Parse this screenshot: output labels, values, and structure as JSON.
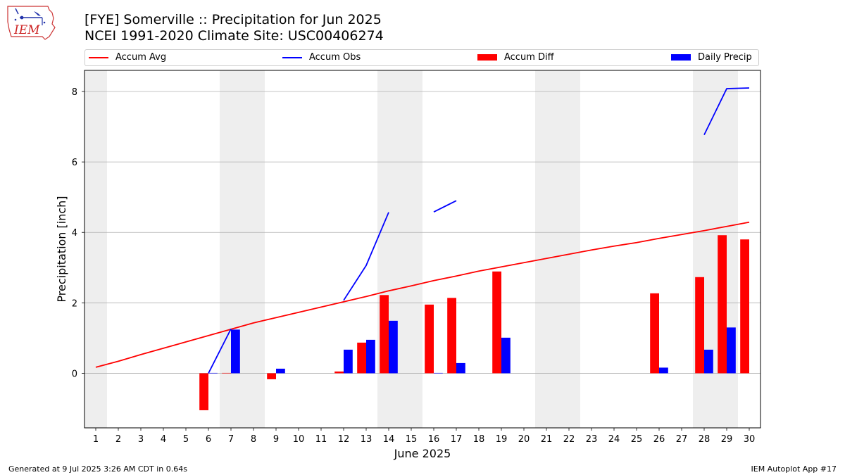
{
  "logo": {
    "text": "IEM"
  },
  "title_line1": "[FYE] Somerville :: Precipitation for Jun 2025",
  "title_line2": "NCEI 1991-2020 Climate Site: USC00406274",
  "footer": {
    "left": "Generated at 9 Jul 2025 3:26 AM CDT in 0.64s",
    "right": "IEM Autoplot App #17"
  },
  "colors": {
    "avg": "#ff0000",
    "obs": "#0000ff",
    "diff": "#ff0000",
    "daily": "#0000ff",
    "weekend": "#eeeeee",
    "grid": "#b0b0b0"
  },
  "chart_data": {
    "type": "bar",
    "xlabel": "June 2025",
    "ylabel": "Precipitation [inch]",
    "xlim": [
      0.5,
      30.5
    ],
    "ylim": [
      -1.55,
      8.6
    ],
    "yticks": [
      0,
      2,
      4,
      6,
      8
    ],
    "grid": "horizontal",
    "legend_placement": "top",
    "days": [
      1,
      2,
      3,
      4,
      5,
      6,
      7,
      8,
      9,
      10,
      11,
      12,
      13,
      14,
      15,
      16,
      17,
      18,
      19,
      20,
      21,
      22,
      23,
      24,
      25,
      26,
      27,
      28,
      29,
      30
    ],
    "weekend_days": [
      1,
      7,
      8,
      14,
      15,
      21,
      22,
      28,
      29
    ],
    "legend": [
      "Accum Avg",
      "Accum Obs",
      "Accum Diff",
      "Daily Precip"
    ],
    "series": [
      {
        "name": "Accum Avg",
        "kind": "line",
        "color": "#ff0000",
        "values": [
          0.17,
          0.34,
          0.53,
          0.71,
          0.89,
          1.07,
          1.25,
          1.43,
          1.58,
          1.73,
          1.88,
          2.03,
          2.18,
          2.34,
          2.48,
          2.63,
          2.76,
          2.9,
          3.02,
          3.14,
          3.26,
          3.38,
          3.5,
          3.61,
          3.71,
          3.83,
          3.94,
          4.05,
          4.17,
          4.29
        ]
      },
      {
        "name": "Accum Obs",
        "kind": "line",
        "color": "#0000ff",
        "values": [
          null,
          null,
          null,
          null,
          null,
          0.0,
          1.26,
          null,
          null,
          null,
          null,
          2.07,
          3.06,
          4.57,
          null,
          4.58,
          4.9,
          null,
          null,
          null,
          null,
          null,
          null,
          null,
          null,
          null,
          null,
          6.77,
          8.08,
          8.1
        ]
      },
      {
        "name": "Accum Diff",
        "kind": "bar",
        "color": "#ff0000",
        "offset": -0.2,
        "values": [
          0,
          0,
          0,
          0,
          0,
          -1.05,
          0.01,
          0,
          -0.17,
          0,
          0,
          0.05,
          0.87,
          2.22,
          0,
          1.95,
          2.14,
          0,
          2.89,
          0,
          0,
          0,
          0,
          0,
          0,
          2.27,
          0,
          2.73,
          3.92,
          3.8
        ]
      },
      {
        "name": "Daily Precip",
        "kind": "bar",
        "color": "#0000ff",
        "offset": 0.2,
        "values": [
          0,
          0,
          0,
          0,
          0,
          0.01,
          1.24,
          0,
          0.13,
          0,
          0,
          0.67,
          0.95,
          1.49,
          0,
          0.01,
          0.29,
          0,
          1.01,
          0,
          0,
          0,
          0,
          0,
          0,
          0.16,
          0,
          0.67,
          1.3,
          0
        ]
      }
    ]
  }
}
